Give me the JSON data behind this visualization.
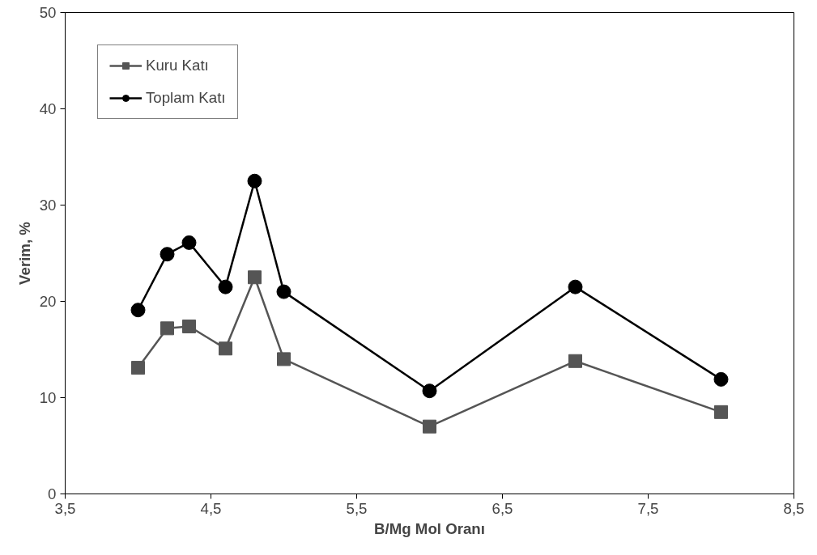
{
  "chart_data": {
    "type": "line",
    "xlabel": "B/Mg Mol Oranı",
    "ylabel": "Verim, %",
    "x": [
      4.0,
      4.2,
      4.35,
      4.6,
      4.8,
      5.0,
      6.0,
      7.0,
      8.0
    ],
    "series": [
      {
        "name": "Kuru Katı",
        "color": "#555555",
        "marker": "square",
        "values": [
          13.1,
          17.2,
          17.4,
          15.1,
          22.5,
          14.0,
          7.0,
          13.8,
          8.5
        ]
      },
      {
        "name": "Toplam Katı",
        "color": "#000000",
        "marker": "circle",
        "values": [
          19.1,
          24.9,
          26.1,
          21.5,
          32.5,
          21.0,
          10.7,
          21.5,
          11.9
        ]
      }
    ],
    "xlim": [
      3.5,
      8.5
    ],
    "ylim": [
      0,
      50
    ],
    "xticks": [
      {
        "value": 3.5,
        "label": "3,5"
      },
      {
        "value": 4.5,
        "label": "4,5"
      },
      {
        "value": 5.5,
        "label": "5,5"
      },
      {
        "value": 6.5,
        "label": "6,5"
      },
      {
        "value": 7.5,
        "label": "7,5"
      },
      {
        "value": 8.5,
        "label": "8,5"
      }
    ],
    "yticks": [
      0,
      10,
      20,
      30,
      40,
      50
    ],
    "grid": false,
    "legend": "top left",
    "line_style": "solid"
  }
}
